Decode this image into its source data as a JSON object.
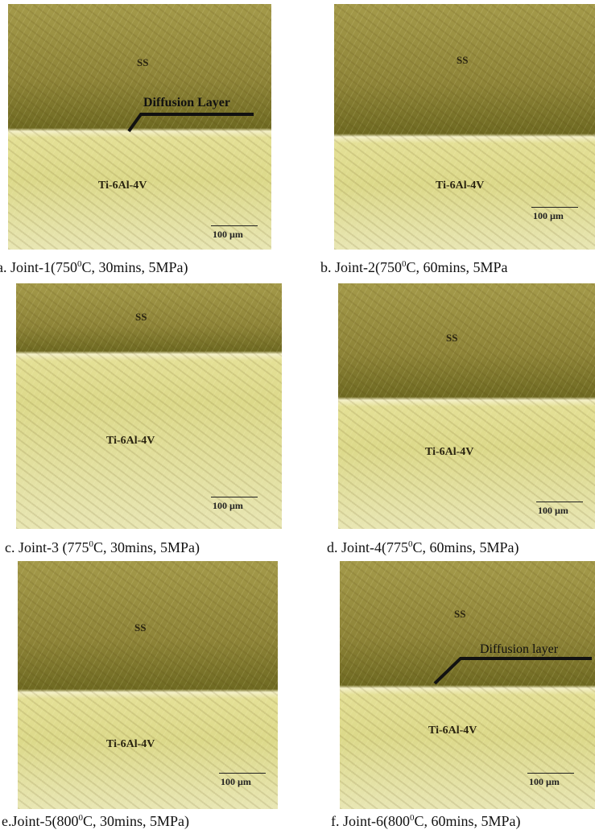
{
  "panels": [
    {
      "top_label": "SS",
      "bottom_label": "Ti-6Al-4V",
      "scale": "100 µm",
      "annotation": "Diffusion Layer",
      "caption": [
        "a. Joint-1(750",
        "0",
        "C, 30mins, 5MPa)"
      ]
    },
    {
      "top_label": "SS",
      "bottom_label": "Ti-6Al-4V",
      "scale": "100 µm",
      "caption": [
        "b. Joint-2(750",
        "0",
        "C, 60mins, 5MPa"
      ]
    },
    {
      "top_label": "SS",
      "bottom_label": "Ti-6Al-4V",
      "scale": "100 µm",
      "caption": [
        "c. Joint-3 (775",
        "0",
        "C, 30mins, 5MPa)"
      ]
    },
    {
      "top_label": "SS",
      "bottom_label": "Ti-6Al-4V",
      "scale": "100 µm",
      "caption": [
        "d. Joint-4(775",
        "0",
        "C, 60mins, 5MPa)"
      ]
    },
    {
      "top_label": "SS",
      "bottom_label": "Ti-6Al-4V",
      "scale": "100 µm",
      "caption": [
        "e.Joint-5(800",
        "0",
        "C, 30mins, 5MPa)"
      ]
    },
    {
      "top_label": "SS",
      "bottom_label": "Ti-6Al-4V",
      "scale": "100 µm",
      "annotation": "Diffusion layer",
      "caption": [
        "f. Joint-6(800",
        "0",
        "C, 60mins, 5MPa)"
      ]
    }
  ]
}
